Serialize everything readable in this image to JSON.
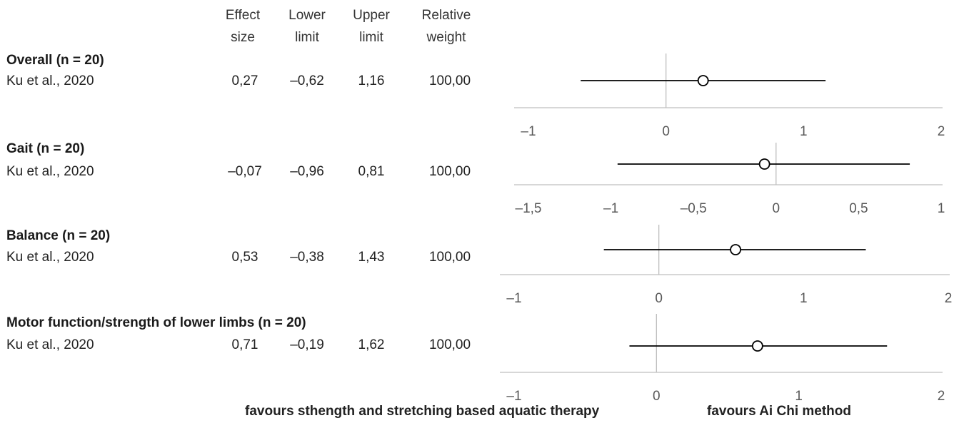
{
  "headers": {
    "effect_l1": "Effect",
    "effect_l2": "size",
    "lower_l1": "Lower",
    "lower_l2": "limit",
    "upper_l1": "Upper",
    "upper_l2": "limit",
    "weight_l1": "Relative",
    "weight_l2": "weight"
  },
  "footer": {
    "left": "favours sthength and stretching based aquatic therapy",
    "right": "favours Ai Chi method"
  },
  "chart_data": [
    {
      "type": "forest",
      "title": "Overall (n = 20)",
      "study": "Ku et al., 2020",
      "effect": 0.27,
      "lower": -0.62,
      "upper": 1.16,
      "effect_label": "0,27",
      "lower_label": "–0,62",
      "upper_label": "1,16",
      "weight_label": "100,00",
      "xlim": [
        -1,
        2
      ],
      "ticks": [
        -1,
        0,
        1,
        2
      ],
      "tick_labels": [
        "–1",
        "0",
        "1",
        "2"
      ]
    },
    {
      "type": "forest",
      "title": "Gait (n = 20)",
      "study": "Ku et al., 2020",
      "effect": -0.07,
      "lower": -0.96,
      "upper": 0.81,
      "effect_label": "–0,07",
      "lower_label": "–0,96",
      "upper_label": "0,81",
      "weight_label": "100,00",
      "xlim": [
        -1.5,
        1
      ],
      "ticks": [
        -1.5,
        -1,
        -0.5,
        0,
        0.5,
        1
      ],
      "tick_labels": [
        "–1,5",
        "–1",
        "–0,5",
        "0",
        "0,5",
        "1"
      ]
    },
    {
      "type": "forest",
      "title": "Balance (n = 20)",
      "study": "Ku et al., 2020",
      "effect": 0.53,
      "lower": -0.38,
      "upper": 1.43,
      "effect_label": "0,53",
      "lower_label": "–0,38",
      "upper_label": "1,43",
      "weight_label": "100,00",
      "xlim": [
        -1,
        2
      ],
      "ticks": [
        -1,
        0,
        1,
        2
      ],
      "tick_labels": [
        "–1",
        "0",
        "1",
        "2"
      ]
    },
    {
      "type": "forest",
      "title": "Motor function/strength of lower limbs (n = 20)",
      "study": "Ku et al., 2020",
      "effect": 0.71,
      "lower": -0.19,
      "upper": 1.62,
      "effect_label": "0,71",
      "lower_label": "–0,19",
      "upper_label": "1,62",
      "weight_label": "100,00",
      "xlim": [
        -1,
        2
      ],
      "ticks": [
        -1,
        0,
        1,
        2
      ],
      "tick_labels": [
        "–1",
        "0",
        "1",
        "2"
      ]
    }
  ]
}
